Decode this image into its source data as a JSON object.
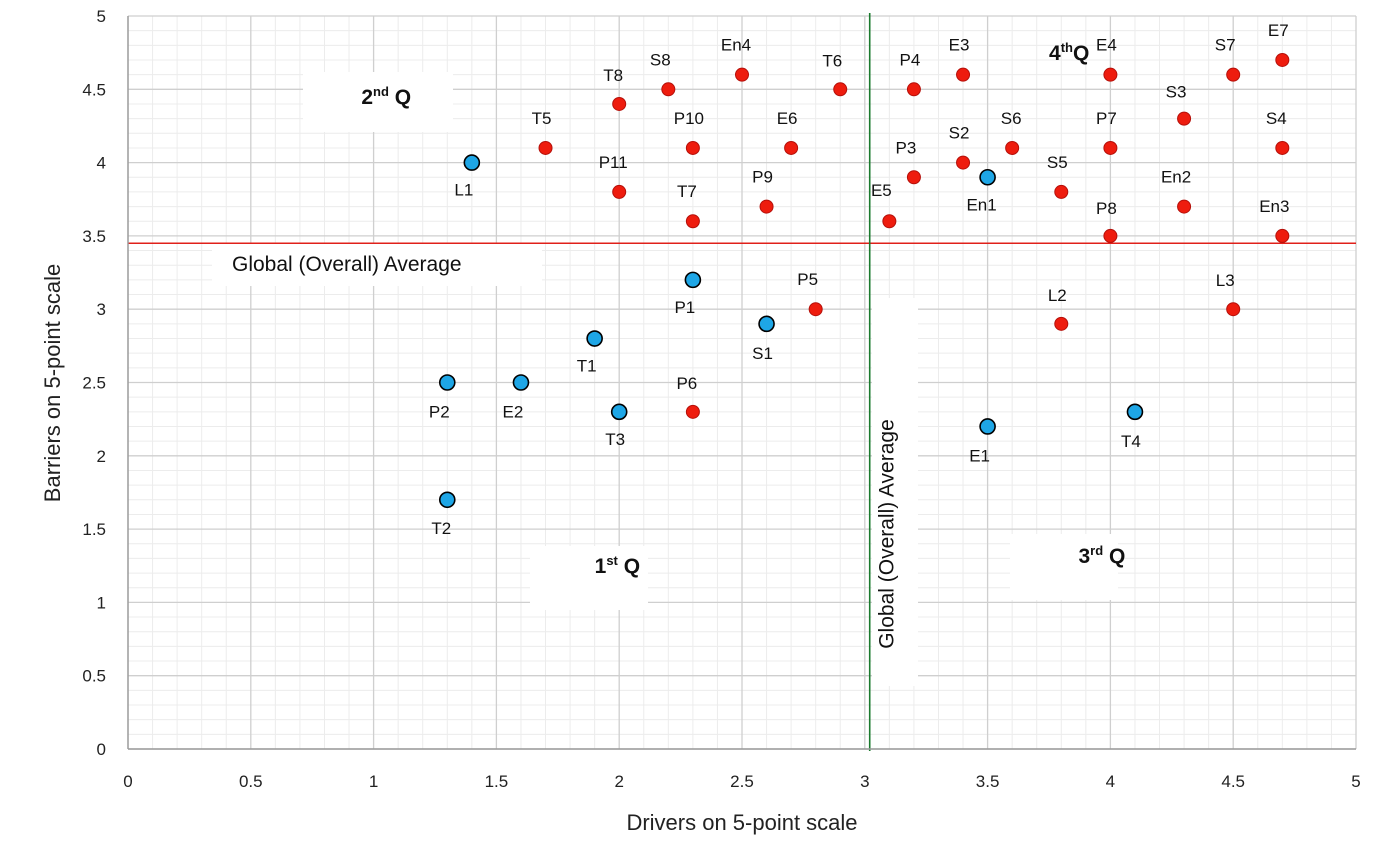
{
  "chart_data": {
    "type": "scatter",
    "xlabel": "Drivers  on 5-point  scale",
    "ylabel": "Barriers  on  5-point scale",
    "xlim": [
      0,
      5
    ],
    "ylim": [
      0,
      5
    ],
    "x_ticks": [
      "0",
      "0.5",
      "1",
      "1.5",
      "2",
      "2.5",
      "3",
      "3.5",
      "4",
      "4.5",
      "5"
    ],
    "y_ticks": [
      "0",
      "0.5",
      "1",
      "1.5",
      "2",
      "2.5",
      "3",
      "3.5",
      "4",
      "4.5",
      "5"
    ],
    "grid": true,
    "series": [
      {
        "color": "#ee1c0e",
        "points": [
          {
            "label": "T8",
            "x": 2.0,
            "y": 4.4
          },
          {
            "label": "S8",
            "x": 2.2,
            "y": 4.5
          },
          {
            "label": "En4",
            "x": 2.5,
            "y": 4.6
          },
          {
            "label": "T6",
            "x": 2.9,
            "y": 4.5
          },
          {
            "label": "T5",
            "x": 1.7,
            "y": 4.1
          },
          {
            "label": "P10",
            "x": 2.3,
            "y": 4.1
          },
          {
            "label": "E6",
            "x": 2.7,
            "y": 4.1
          },
          {
            "label": "P11",
            "x": 2.0,
            "y": 3.8
          },
          {
            "label": "P9",
            "x": 2.6,
            "y": 3.7
          },
          {
            "label": "T7",
            "x": 2.3,
            "y": 3.6
          },
          {
            "label": "P4",
            "x": 3.2,
            "y": 4.5
          },
          {
            "label": "E3",
            "x": 3.4,
            "y": 4.6
          },
          {
            "label": "E4",
            "x": 4.0,
            "y": 4.6
          },
          {
            "label": "S7",
            "x": 4.5,
            "y": 4.6
          },
          {
            "label": "E7",
            "x": 4.7,
            "y": 4.7
          },
          {
            "label": "S3",
            "x": 4.3,
            "y": 4.3
          },
          {
            "label": "S2",
            "x": 3.4,
            "y": 4.0
          },
          {
            "label": "S6",
            "x": 3.6,
            "y": 4.1
          },
          {
            "label": "P7",
            "x": 4.0,
            "y": 4.1
          },
          {
            "label": "S4",
            "x": 4.7,
            "y": 4.1
          },
          {
            "label": "P3",
            "x": 3.2,
            "y": 3.9
          },
          {
            "label": "S5",
            "x": 3.8,
            "y": 3.8
          },
          {
            "label": "En2",
            "x": 4.3,
            "y": 3.7
          },
          {
            "label": "E5",
            "x": 3.1,
            "y": 3.6
          },
          {
            "label": "P8",
            "x": 4.0,
            "y": 3.5
          },
          {
            "label": "En3",
            "x": 4.7,
            "y": 3.5
          },
          {
            "label": "P5",
            "x": 2.8,
            "y": 3.0
          },
          {
            "label": "P6",
            "x": 2.3,
            "y": 2.3
          },
          {
            "label": "L2",
            "x": 3.8,
            "y": 2.9
          },
          {
            "label": "L3",
            "x": 4.5,
            "y": 3.0
          }
        ]
      },
      {
        "color": "#1ea6e6",
        "points": [
          {
            "label": "L1",
            "x": 1.4,
            "y": 4.0
          },
          {
            "label": "En1",
            "x": 3.5,
            "y": 3.9
          },
          {
            "label": "P1",
            "x": 2.3,
            "y": 3.2
          },
          {
            "label": "S1",
            "x": 2.6,
            "y": 2.9
          },
          {
            "label": "T1",
            "x": 1.9,
            "y": 2.8
          },
          {
            "label": "P2",
            "x": 1.3,
            "y": 2.5
          },
          {
            "label": "E2",
            "x": 1.6,
            "y": 2.5
          },
          {
            "label": "T3",
            "x": 2.0,
            "y": 2.3
          },
          {
            "label": "T2",
            "x": 1.3,
            "y": 1.7
          },
          {
            "label": "E1",
            "x": 3.5,
            "y": 2.2
          },
          {
            "label": "T4",
            "x": 4.1,
            "y": 2.3
          }
        ]
      }
    ],
    "reference_lines": {
      "horizontal": {
        "label": "Global (Overall) Average",
        "y": 3.45,
        "color": "#e0201a"
      },
      "vertical": {
        "label": "Global (Overall) Average",
        "x": 3.02,
        "color": "#1b7a2e"
      }
    },
    "quadrants": [
      {
        "base": "1",
        "sup": "st",
        "rest": " Q",
        "x": 1.9,
        "y": 1.2
      },
      {
        "base": "2",
        "sup": "nd",
        "rest": "  Q",
        "x": 0.95,
        "y": 4.4
      },
      {
        "base": "3",
        "sup": "rd",
        "rest": " Q",
        "x": 3.87,
        "y": 1.27
      },
      {
        "base": "4",
        "sup": "th",
        "rest": "Q",
        "x": 3.75,
        "y": 4.7
      }
    ]
  }
}
